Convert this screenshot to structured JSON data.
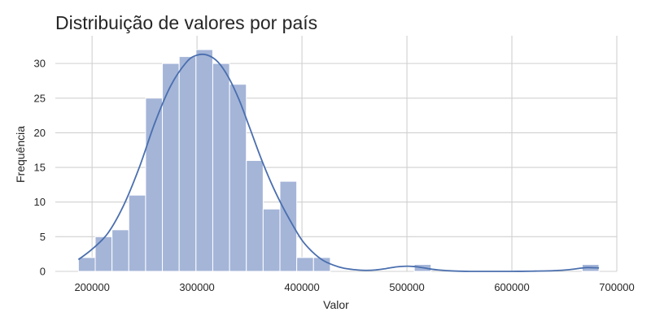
{
  "chart_data": {
    "type": "bar",
    "title": "Distribuição de valores por país",
    "xlabel": "Valor",
    "ylabel": "Frequência",
    "xlim": [
      165000,
      700000
    ],
    "ylim": [
      0,
      34
    ],
    "x_ticks": [
      200000,
      300000,
      400000,
      500000,
      600000,
      700000
    ],
    "x_tick_labels": [
      "200000",
      "300000",
      "400000",
      "500000",
      "600000",
      "700000"
    ],
    "y_ticks": [
      0,
      5,
      10,
      15,
      20,
      25,
      30
    ],
    "y_tick_labels": [
      "0",
      "5",
      "10",
      "15",
      "20",
      "25",
      "30"
    ],
    "grid": true,
    "bar_color": "#a4b5d8",
    "line_color": "#4a6fae",
    "bins": [
      {
        "x0": 187000,
        "x1": 203000,
        "value": 2
      },
      {
        "x0": 203000,
        "x1": 219000,
        "value": 5
      },
      {
        "x0": 219000,
        "x1": 235000,
        "value": 6
      },
      {
        "x0": 235000,
        "x1": 251000,
        "value": 11
      },
      {
        "x0": 251000,
        "x1": 267000,
        "value": 25
      },
      {
        "x0": 267000,
        "x1": 283000,
        "value": 30
      },
      {
        "x0": 283000,
        "x1": 299000,
        "value": 31
      },
      {
        "x0": 299000,
        "x1": 315000,
        "value": 32
      },
      {
        "x0": 315000,
        "x1": 331000,
        "value": 30
      },
      {
        "x0": 331000,
        "x1": 347000,
        "value": 27
      },
      {
        "x0": 347000,
        "x1": 363000,
        "value": 16
      },
      {
        "x0": 363000,
        "x1": 379000,
        "value": 9
      },
      {
        "x0": 379000,
        "x1": 395000,
        "value": 13
      },
      {
        "x0": 395000,
        "x1": 411000,
        "value": 2
      },
      {
        "x0": 411000,
        "x1": 427000,
        "value": 2
      },
      {
        "x0": 427000,
        "x1": 443000,
        "value": 0
      },
      {
        "x0": 443000,
        "x1": 459000,
        "value": 0
      },
      {
        "x0": 459000,
        "x1": 475000,
        "value": 0
      },
      {
        "x0": 475000,
        "x1": 491000,
        "value": 0
      },
      {
        "x0": 491000,
        "x1": 507000,
        "value": 0
      },
      {
        "x0": 507000,
        "x1": 523000,
        "value": 1
      },
      {
        "x0": 523000,
        "x1": 539000,
        "value": 0
      },
      {
        "x0": 539000,
        "x1": 555000,
        "value": 0
      },
      {
        "x0": 555000,
        "x1": 571000,
        "value": 0
      },
      {
        "x0": 571000,
        "x1": 587000,
        "value": 0
      },
      {
        "x0": 587000,
        "x1": 603000,
        "value": 0
      },
      {
        "x0": 603000,
        "x1": 619000,
        "value": 0
      },
      {
        "x0": 619000,
        "x1": 635000,
        "value": 0
      },
      {
        "x0": 635000,
        "x1": 651000,
        "value": 0
      },
      {
        "x0": 651000,
        "x1": 667000,
        "value": 0
      },
      {
        "x0": 667000,
        "x1": 683000,
        "value": 1
      }
    ],
    "kde": {
      "x": [
        187000,
        200000,
        215000,
        230000,
        245000,
        260000,
        275000,
        290000,
        300000,
        310000,
        320000,
        330000,
        340000,
        350000,
        360000,
        370000,
        380000,
        390000,
        400000,
        410000,
        420000,
        430000,
        440000,
        450000,
        460000,
        470000,
        480000,
        490000,
        500000,
        510000,
        520000,
        530000,
        545000,
        560000,
        580000,
        600000,
        620000,
        640000,
        655000,
        665000,
        672000,
        683000
      ],
      "y": [
        1.7,
        3.2,
        5.5,
        9.5,
        15.0,
        21.5,
        26.8,
        30.2,
        31.2,
        31.2,
        30.2,
        28.0,
        24.8,
        20.8,
        16.7,
        13.0,
        9.8,
        7.0,
        4.5,
        2.8,
        1.6,
        0.9,
        0.45,
        0.25,
        0.15,
        0.2,
        0.4,
        0.65,
        0.75,
        0.65,
        0.4,
        0.2,
        0.05,
        0.0,
        0.0,
        0.0,
        0.03,
        0.1,
        0.25,
        0.45,
        0.55,
        0.5
      ]
    }
  }
}
